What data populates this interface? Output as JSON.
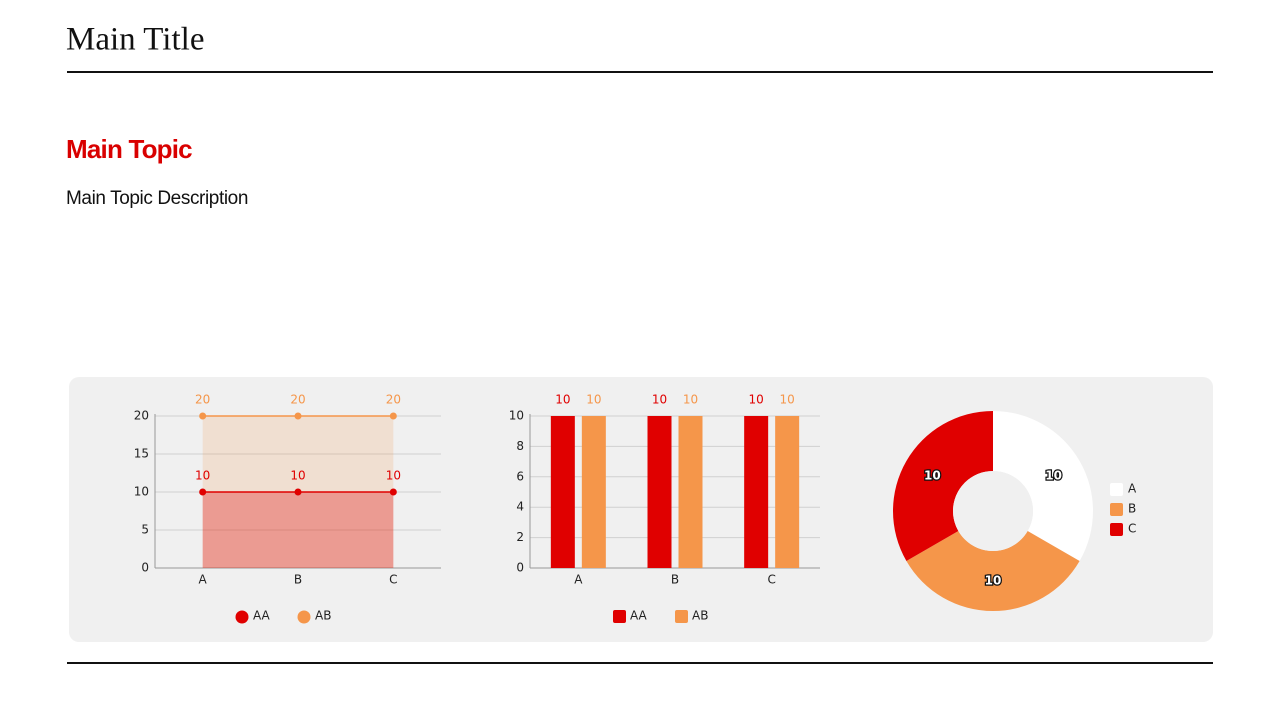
{
  "title": "Main Title",
  "topic": "Main Topic",
  "description": "Main Topic Description",
  "chart_data": [
    {
      "type": "area",
      "categories": [
        "A",
        "B",
        "C"
      ],
      "series": [
        {
          "name": "AA",
          "color": "#e00000",
          "values": [
            10,
            10,
            10
          ]
        },
        {
          "name": "AB",
          "color": "#f5964a",
          "values": [
            20,
            20,
            20
          ]
        }
      ],
      "ylim": [
        0,
        20
      ],
      "yticks": [
        0,
        5,
        10,
        15,
        20
      ],
      "grid": true
    },
    {
      "type": "bar",
      "categories": [
        "A",
        "B",
        "C"
      ],
      "series": [
        {
          "name": "AA",
          "color": "#e00000",
          "values": [
            10,
            10,
            10
          ]
        },
        {
          "name": "AB",
          "color": "#f5964a",
          "values": [
            10,
            10,
            10
          ]
        }
      ],
      "ylim": [
        0,
        10
      ],
      "yticks": [
        0,
        2,
        4,
        6,
        8,
        10
      ],
      "grid": true
    },
    {
      "type": "donut",
      "categories": [
        "A",
        "B",
        "C"
      ],
      "values": [
        10,
        10,
        10
      ],
      "colors": [
        "#ffffff",
        "#f5964a",
        "#e00000"
      ]
    }
  ]
}
